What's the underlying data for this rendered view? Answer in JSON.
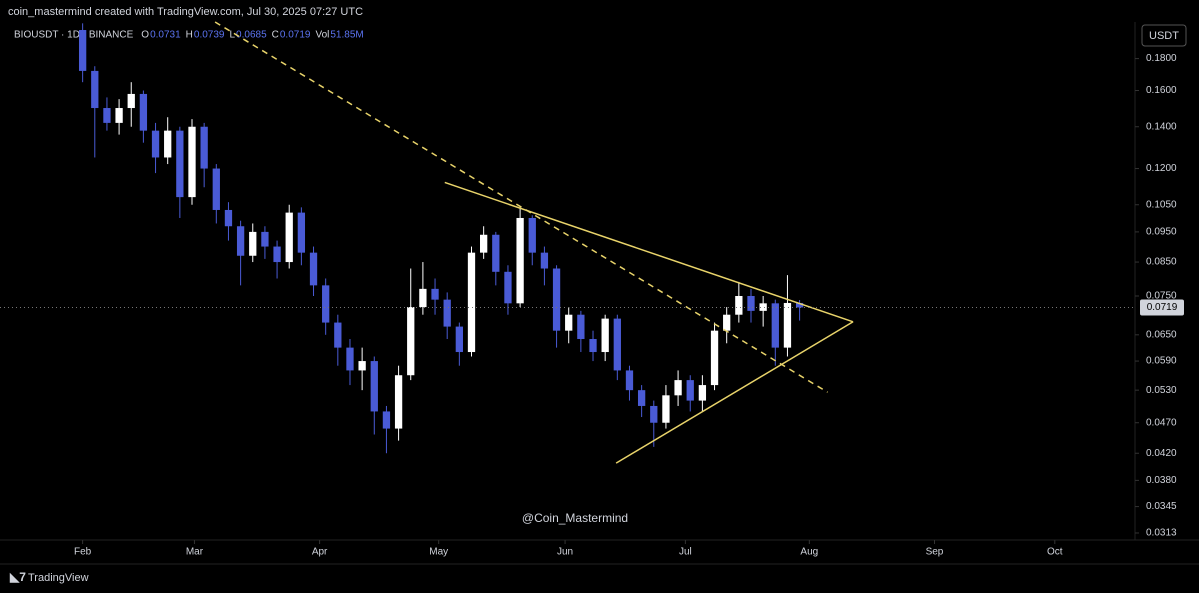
{
  "header": {
    "credit": "coin_mastermind created with TradingView.com, Jul 30, 2025 07:27 UTC",
    "volume": "51.85M",
    "currency": "USDT",
    "watermark": "@Coin_Mastermind",
    "brand": "TradingView"
  },
  "chart_data": {
    "type": "candlestick",
    "title": "BIOUSDT · 1D · BINANCE",
    "ohlc_labels": [
      "O",
      "H",
      "L",
      "C",
      "Vol"
    ],
    "open": [
      0.2,
      0.172,
      0.15,
      0.142,
      0.15,
      0.158,
      0.138,
      0.125,
      0.138,
      0.108,
      0.14,
      0.12,
      0.103,
      0.097,
      0.087,
      0.095,
      0.09,
      0.085,
      0.102,
      0.088,
      0.078,
      0.068,
      0.062,
      0.057,
      0.059,
      0.049,
      0.046,
      0.056,
      0.072,
      0.077,
      0.074,
      0.067,
      0.061,
      0.088,
      0.094,
      0.082,
      0.073,
      0.1,
      0.088,
      0.083,
      0.066,
      0.07,
      0.064,
      0.061,
      0.069,
      0.057,
      0.053,
      0.05,
      0.047,
      0.052,
      0.055,
      0.051,
      0.054,
      0.066,
      0.07,
      0.075,
      0.071,
      0.073,
      0.062,
      0.0731
    ],
    "high": [
      0.205,
      0.175,
      0.156,
      0.155,
      0.165,
      0.16,
      0.142,
      0.145,
      0.14,
      0.144,
      0.142,
      0.122,
      0.106,
      0.099,
      0.098,
      0.097,
      0.092,
      0.105,
      0.104,
      0.09,
      0.08,
      0.07,
      0.064,
      0.062,
      0.06,
      0.05,
      0.058,
      0.083,
      0.085,
      0.08,
      0.076,
      0.068,
      0.09,
      0.097,
      0.095,
      0.084,
      0.104,
      0.101,
      0.09,
      0.084,
      0.072,
      0.071,
      0.066,
      0.07,
      0.07,
      0.058,
      0.054,
      0.051,
      0.054,
      0.057,
      0.056,
      0.056,
      0.068,
      0.072,
      0.079,
      0.077,
      0.075,
      0.074,
      0.081,
      0.0739
    ],
    "low": [
      0.165,
      0.125,
      0.138,
      0.136,
      0.14,
      0.132,
      0.118,
      0.122,
      0.1,
      0.105,
      0.112,
      0.098,
      0.092,
      0.078,
      0.085,
      0.086,
      0.08,
      0.083,
      0.084,
      0.075,
      0.065,
      0.058,
      0.054,
      0.053,
      0.045,
      0.042,
      0.044,
      0.055,
      0.07,
      0.07,
      0.064,
      0.058,
      0.06,
      0.086,
      0.078,
      0.07,
      0.072,
      0.084,
      0.078,
      0.062,
      0.063,
      0.061,
      0.059,
      0.059,
      0.055,
      0.051,
      0.048,
      0.043,
      0.046,
      0.05,
      0.049,
      0.049,
      0.053,
      0.063,
      0.068,
      0.068,
      0.067,
      0.058,
      0.06,
      0.0685
    ],
    "close": [
      0.172,
      0.15,
      0.142,
      0.15,
      0.158,
      0.138,
      0.125,
      0.138,
      0.108,
      0.14,
      0.12,
      0.103,
      0.097,
      0.087,
      0.095,
      0.09,
      0.085,
      0.102,
      0.088,
      0.078,
      0.068,
      0.062,
      0.057,
      0.059,
      0.049,
      0.046,
      0.056,
      0.072,
      0.077,
      0.074,
      0.067,
      0.061,
      0.088,
      0.094,
      0.082,
      0.073,
      0.1,
      0.088,
      0.083,
      0.066,
      0.07,
      0.064,
      0.061,
      0.069,
      0.057,
      0.053,
      0.05,
      0.047,
      0.052,
      0.055,
      0.051,
      0.054,
      0.066,
      0.07,
      0.075,
      0.071,
      0.073,
      0.062,
      0.0731,
      0.0719
    ],
    "up_color": "#ffffff",
    "down_color": "#4a5bd6",
    "log_scale": true,
    "grid": false,
    "ylim": [
      0.0305,
      0.206
    ],
    "yticks": [
      {
        "value": 0.18,
        "label": "0.1800"
      },
      {
        "value": 0.16,
        "label": "0.1600"
      },
      {
        "value": 0.14,
        "label": "0.1400"
      },
      {
        "value": 0.12,
        "label": "0.1200"
      },
      {
        "value": 0.105,
        "label": "0.1050"
      },
      {
        "value": 0.095,
        "label": "0.0950"
      },
      {
        "value": 0.085,
        "label": "0.0850"
      },
      {
        "value": 0.075,
        "label": "0.0750"
      },
      {
        "value": 0.065,
        "label": "0.0650"
      },
      {
        "value": 0.059,
        "label": "0.0590"
      },
      {
        "value": 0.053,
        "label": "0.0530"
      },
      {
        "value": 0.047,
        "label": "0.0470"
      },
      {
        "value": 0.042,
        "label": "0.0420"
      },
      {
        "value": 0.038,
        "label": "0.0380"
      },
      {
        "value": 0.0345,
        "label": "0.0345"
      },
      {
        "value": 0.0313,
        "label": "0.0313"
      }
    ],
    "xlim": [
      -6.8,
      86.6
    ],
    "xticks": [
      {
        "value": 0,
        "label": "Feb"
      },
      {
        "value": 9.2,
        "label": "Mar"
      },
      {
        "value": 19.5,
        "label": "Apr"
      },
      {
        "value": 29.3,
        "label": "May"
      },
      {
        "value": 39.7,
        "label": "Jun"
      },
      {
        "value": 49.6,
        "label": "Jul"
      },
      {
        "value": 59.8,
        "label": "Aug"
      },
      {
        "value": 70.1,
        "label": "Sep"
      },
      {
        "value": 80.0,
        "label": "Oct"
      }
    ],
    "trendlines": [
      {
        "style": "dashed",
        "color": "#e8d36a",
        "x": [
          10.9,
          61.3
        ],
        "y": [
          0.206,
          0.0526
        ]
      },
      {
        "style": "solid",
        "color": "#e8d36a",
        "x": [
          29.8,
          63.4
        ],
        "y": [
          0.114,
          0.0682
        ]
      },
      {
        "style": "solid",
        "color": "#e8d36a",
        "x": [
          43.9,
          63.4
        ],
        "y": [
          0.0405,
          0.0682
        ]
      }
    ]
  }
}
